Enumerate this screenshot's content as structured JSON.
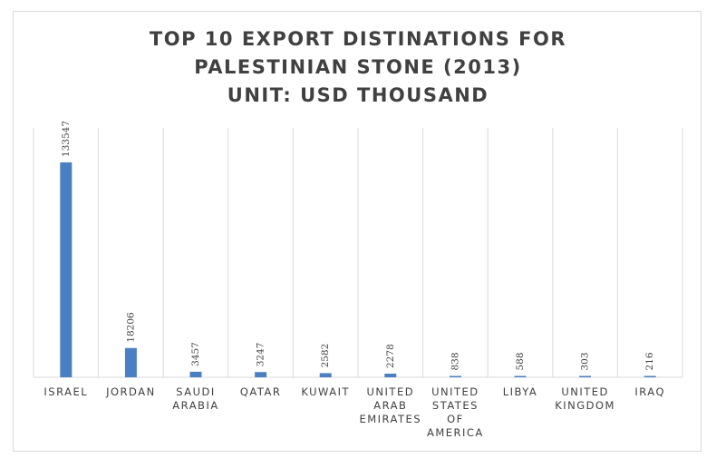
{
  "chart_data": {
    "type": "bar",
    "title_lines": [
      "TOP 10 EXPORT DISTINATIONS FOR",
      "PALESTINIAN STONE (2013)",
      "UNIT: USD THOUSAND"
    ],
    "categories": [
      [
        "ISRAEL"
      ],
      [
        "JORDAN"
      ],
      [
        "SAUDI",
        "ARABIA"
      ],
      [
        "QATAR"
      ],
      [
        "KUWAIT"
      ],
      [
        "UNITED",
        "ARAB",
        "EMIRATES"
      ],
      [
        "UNITED",
        "STATES",
        "OF",
        "AMERICA"
      ],
      [
        "LIBYA"
      ],
      [
        "UNITED",
        "KINGDOM"
      ],
      [
        "IRAQ"
      ]
    ],
    "values": [
      133547,
      18206,
      3457,
      3247,
      2582,
      2278,
      838,
      588,
      303,
      216
    ],
    "data_labels": [
      "133547",
      "18206",
      "3457",
      "3247",
      "2582",
      "2278",
      "838",
      "588",
      "303",
      "216"
    ],
    "ylim": [
      0,
      155000
    ],
    "grid": "vertical category separators",
    "bar_color": "#4a7fc1",
    "legend": "none"
  }
}
